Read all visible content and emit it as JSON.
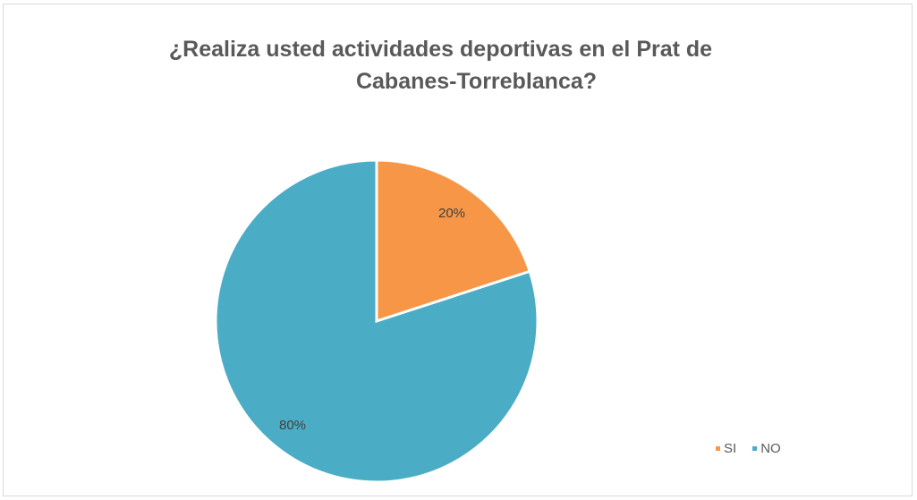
{
  "chart_data": {
    "type": "pie",
    "title_line1": "¿Realiza usted actividades deportivas en el Prat de",
    "title_line2": "Cabanes-Torreblanca?",
    "slices": [
      {
        "label": "SI",
        "value": 20,
        "data_label": "20%",
        "color": "#f79646"
      },
      {
        "label": "NO",
        "value": 80,
        "data_label": "80%",
        "color": "#4bacc6"
      }
    ],
    "legend_position": "bottom-right",
    "start_angle": "12 o'clock",
    "direction": "clockwise"
  }
}
